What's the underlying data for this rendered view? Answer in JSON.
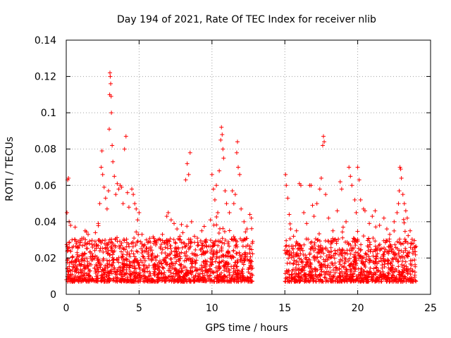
{
  "chart_data": {
    "type": "scatter",
    "title": "Day 194 of 2021, Rate Of TEC Index for receiver nlib",
    "xlabel": "GPS time / hours",
    "ylabel": "ROTI / TECUs",
    "xlim": [
      0,
      25
    ],
    "ylim": [
      0,
      0.14
    ],
    "xticks": [
      0,
      5,
      10,
      15,
      20,
      25
    ],
    "xtick_labels": [
      "0",
      "5",
      "10",
      "15",
      "20",
      "25"
    ],
    "yticks": [
      0,
      0.02,
      0.04,
      0.06,
      0.08,
      0.1,
      0.12,
      0.14
    ],
    "ytick_labels": [
      "0",
      "0.02",
      "0.04",
      "0.06",
      "0.08",
      "0.1",
      "0.12",
      "0.14"
    ],
    "grid": true,
    "marker": "+",
    "color": "#ff0000",
    "data_gap_hours": [
      12.8,
      15.0
    ],
    "series": [
      {
        "name": "ROTI",
        "points": [
          [
            0.05,
            0.045
          ],
          [
            0.1,
            0.063
          ],
          [
            0.15,
            0.064
          ],
          [
            0.2,
            0.04
          ],
          [
            0.3,
            0.038
          ],
          [
            0.4,
            0.03
          ],
          [
            0.6,
            0.03
          ],
          [
            0.8,
            0.026
          ],
          [
            1.2,
            0.031
          ],
          [
            1.5,
            0.033
          ],
          [
            1.8,
            0.026
          ],
          [
            2.0,
            0.034
          ],
          [
            2.2,
            0.039
          ],
          [
            2.3,
            0.05
          ],
          [
            2.4,
            0.07
          ],
          [
            2.45,
            0.079
          ],
          [
            2.5,
            0.066
          ],
          [
            2.6,
            0.059
          ],
          [
            2.7,
            0.053
          ],
          [
            2.8,
            0.047
          ],
          [
            2.9,
            0.057
          ],
          [
            2.95,
            0.091
          ],
          [
            2.98,
            0.11
          ],
          [
            3.0,
            0.122
          ],
          [
            3.02,
            0.12
          ],
          [
            3.05,
            0.116
          ],
          [
            3.08,
            0.109
          ],
          [
            3.1,
            0.1
          ],
          [
            3.15,
            0.082
          ],
          [
            3.2,
            0.073
          ],
          [
            3.3,
            0.065
          ],
          [
            3.4,
            0.055
          ],
          [
            3.5,
            0.061
          ],
          [
            3.6,
            0.058
          ],
          [
            3.7,
            0.06
          ],
          [
            3.8,
            0.059
          ],
          [
            3.9,
            0.05
          ],
          [
            4.0,
            0.08
          ],
          [
            4.1,
            0.087
          ],
          [
            4.2,
            0.056
          ],
          [
            4.3,
            0.048
          ],
          [
            4.5,
            0.058
          ],
          [
            4.6,
            0.055
          ],
          [
            4.7,
            0.05
          ],
          [
            4.8,
            0.047
          ],
          [
            4.9,
            0.041
          ],
          [
            5.0,
            0.045
          ],
          [
            5.2,
            0.033
          ],
          [
            5.5,
            0.03
          ],
          [
            5.8,
            0.026
          ],
          [
            6.0,
            0.028
          ],
          [
            6.3,
            0.03
          ],
          [
            6.6,
            0.033
          ],
          [
            6.9,
            0.043
          ],
          [
            7.0,
            0.045
          ],
          [
            7.2,
            0.041
          ],
          [
            7.4,
            0.039
          ],
          [
            7.6,
            0.036
          ],
          [
            7.8,
            0.032
          ],
          [
            8.0,
            0.034
          ],
          [
            8.2,
            0.063
          ],
          [
            8.3,
            0.072
          ],
          [
            8.4,
            0.066
          ],
          [
            8.5,
            0.078
          ],
          [
            8.6,
            0.04
          ],
          [
            8.8,
            0.032
          ],
          [
            9.0,
            0.031
          ],
          [
            9.3,
            0.035
          ],
          [
            9.6,
            0.03
          ],
          [
            9.9,
            0.041
          ],
          [
            10.0,
            0.066
          ],
          [
            10.1,
            0.058
          ],
          [
            10.2,
            0.052
          ],
          [
            10.3,
            0.06
          ],
          [
            10.4,
            0.045
          ],
          [
            10.5,
            0.068
          ],
          [
            10.6,
            0.085
          ],
          [
            10.65,
            0.092
          ],
          [
            10.7,
            0.088
          ],
          [
            10.75,
            0.08
          ],
          [
            10.8,
            0.075
          ],
          [
            10.9,
            0.057
          ],
          [
            11.0,
            0.05
          ],
          [
            11.2,
            0.045
          ],
          [
            11.4,
            0.057
          ],
          [
            11.5,
            0.05
          ],
          [
            11.6,
            0.055
          ],
          [
            11.7,
            0.078
          ],
          [
            11.75,
            0.084
          ],
          [
            11.8,
            0.07
          ],
          [
            11.9,
            0.066
          ],
          [
            12.0,
            0.047
          ],
          [
            12.2,
            0.04
          ],
          [
            12.4,
            0.036
          ],
          [
            12.6,
            0.044
          ],
          [
            12.7,
            0.042
          ],
          [
            15.05,
            0.066
          ],
          [
            15.1,
            0.06
          ],
          [
            15.2,
            0.053
          ],
          [
            15.3,
            0.044
          ],
          [
            15.4,
            0.036
          ],
          [
            15.6,
            0.032
          ],
          [
            15.8,
            0.035
          ],
          [
            16.0,
            0.061
          ],
          [
            16.1,
            0.06
          ],
          [
            16.3,
            0.045
          ],
          [
            16.5,
            0.039
          ],
          [
            16.7,
            0.06
          ],
          [
            16.8,
            0.06
          ],
          [
            16.9,
            0.049
          ],
          [
            17.0,
            0.043
          ],
          [
            17.2,
            0.05
          ],
          [
            17.4,
            0.058
          ],
          [
            17.5,
            0.064
          ],
          [
            17.6,
            0.082
          ],
          [
            17.65,
            0.087
          ],
          [
            17.7,
            0.084
          ],
          [
            17.8,
            0.055
          ],
          [
            18.0,
            0.042
          ],
          [
            18.3,
            0.035
          ],
          [
            18.6,
            0.046
          ],
          [
            18.8,
            0.062
          ],
          [
            18.9,
            0.058
          ],
          [
            19.0,
            0.037
          ],
          [
            19.2,
            0.04
          ],
          [
            19.4,
            0.07
          ],
          [
            19.5,
            0.065
          ],
          [
            19.6,
            0.06
          ],
          [
            19.8,
            0.052
          ],
          [
            19.9,
            0.045
          ],
          [
            20.0,
            0.07
          ],
          [
            20.1,
            0.063
          ],
          [
            20.2,
            0.052
          ],
          [
            20.4,
            0.047
          ],
          [
            20.5,
            0.046
          ],
          [
            20.8,
            0.039
          ],
          [
            21.0,
            0.043
          ],
          [
            21.2,
            0.046
          ],
          [
            21.5,
            0.038
          ],
          [
            21.8,
            0.042
          ],
          [
            22.0,
            0.036
          ],
          [
            22.2,
            0.033
          ],
          [
            22.5,
            0.04
          ],
          [
            22.7,
            0.045
          ],
          [
            22.8,
            0.05
          ],
          [
            22.85,
            0.057
          ],
          [
            22.9,
            0.07
          ],
          [
            22.95,
            0.069
          ],
          [
            23.0,
            0.064
          ],
          [
            23.1,
            0.055
          ],
          [
            23.2,
            0.05
          ],
          [
            23.3,
            0.046
          ],
          [
            23.4,
            0.042
          ],
          [
            23.6,
            0.035
          ],
          [
            23.8,
            0.028
          ],
          [
            23.9,
            0.026
          ]
        ]
      }
    ]
  }
}
